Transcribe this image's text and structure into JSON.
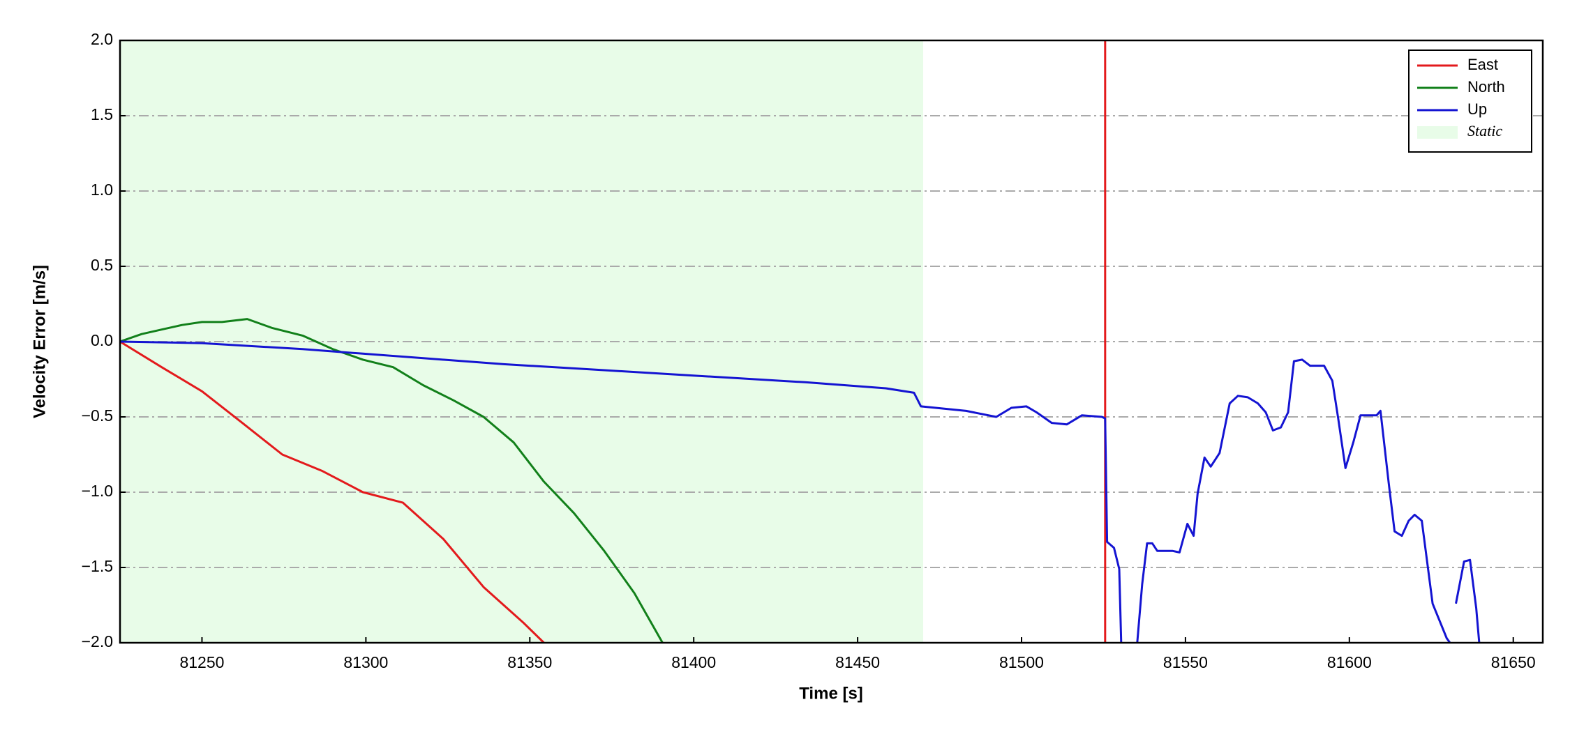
{
  "chart_data": {
    "type": "line",
    "xlabel": "Time [s]",
    "ylabel": "Velocity Error [m/s]",
    "xlim": [
      81225,
      81659
    ],
    "ylim": [
      -2,
      2
    ],
    "xticks": [
      81250,
      81300,
      81350,
      81400,
      81450,
      81500,
      81550,
      81600,
      81650
    ],
    "yticks": [
      {
        "value": -2,
        "label": "−2.0"
      },
      {
        "value": -1.5,
        "label": "−1.5"
      },
      {
        "value": -1,
        "label": "−1.0"
      },
      {
        "value": -0.5,
        "label": "−0.5"
      },
      {
        "value": 0,
        "label": "0.0"
      },
      {
        "value": 0.5,
        "label": "0.5"
      },
      {
        "value": 1,
        "label": "1.0"
      },
      {
        "value": 1.5,
        "label": "1.5"
      },
      {
        "value": 2,
        "label": "2.0"
      }
    ],
    "grid": true,
    "legend": "upper right",
    "shade": {
      "label": "Static",
      "x": [
        81225,
        81470
      ],
      "color": "#e8fce8"
    },
    "series": [
      {
        "name": "East",
        "color": "#e31a1c",
        "x": [
          81225,
          81237.7,
          81250,
          81262.3,
          81274.5,
          81286.8,
          81299.1,
          81311.3,
          81323.6,
          81335.9,
          81348.2,
          81354.3,
          81440,
          81525.5,
          81525.5
        ],
        "values": [
          0.0,
          -0.17,
          -0.33,
          -0.54,
          -0.75,
          -0.86,
          -1.0,
          -1.07,
          -1.31,
          -1.63,
          -1.87,
          -2.0,
          null,
          -2.0,
          2.0
        ]
      },
      {
        "name": "North",
        "color": "#12801a",
        "x": [
          81225,
          81231.6,
          81237.7,
          81243.9,
          81250,
          81256.1,
          81263.8,
          81271.5,
          81280.7,
          81289.9,
          81299.1,
          81308.3,
          81317.5,
          81326.7,
          81335.9,
          81345.1,
          81354.3,
          81363.5,
          81372.7,
          81381.9,
          81390.5
        ],
        "values": [
          0.0,
          0.05,
          0.08,
          0.11,
          0.13,
          0.13,
          0.15,
          0.09,
          0.04,
          -0.05,
          -0.12,
          -0.17,
          -0.29,
          -0.39,
          -0.5,
          -0.67,
          -0.93,
          -1.14,
          -1.39,
          -1.67,
          -2.0
        ]
      },
      {
        "name": "Up",
        "color": "#1414d2",
        "x": [
          81225,
          81250,
          81280.7,
          81299.1,
          81317.5,
          81342.0,
          81372.7,
          81403.4,
          81434.0,
          81458.6,
          81467.2,
          81469.3,
          81483.1,
          81492.3,
          81496.9,
          81501.5,
          81504.6,
          81509.2,
          81513.8,
          81518.4,
          81524.5,
          81525.5,
          81526.1,
          81528.2,
          81529.8,
          81530.4,
          81533,
          81535.3,
          81536.8,
          81538.3,
          81539.9,
          81541.4,
          81546.0,
          81548.2,
          81550.6,
          81552.5,
          81553.7,
          81555.8,
          81557.7,
          81560.4,
          81563.5,
          81566.0,
          81569.0,
          81572.1,
          81574.5,
          81576.7,
          81579.1,
          81581.3,
          81583.1,
          81585.6,
          81588.0,
          81590.5,
          81592.3,
          81594.8,
          81596.6,
          81598.8,
          81601.2,
          81603.4,
          81608.3,
          81609.5,
          81612.0,
          81613.8,
          81616.0,
          81618.1,
          81619.9,
          81622.1,
          81625.4,
          81629.7,
          81630.7,
          81632,
          81632.5,
          81635.0,
          81636.8,
          81638.7,
          81639.6
        ],
        "values": [
          0.0,
          -0.01,
          -0.05,
          -0.08,
          -0.11,
          -0.15,
          -0.19,
          -0.23,
          -0.27,
          -0.31,
          -0.34,
          -0.43,
          -0.46,
          -0.5,
          -0.44,
          -0.43,
          -0.47,
          -0.54,
          -0.55,
          -0.49,
          -0.5,
          -0.51,
          -1.33,
          -1.37,
          -1.51,
          -2.0,
          null,
          -2.0,
          -1.61,
          -1.34,
          -1.34,
          -1.39,
          -1.39,
          -1.4,
          -1.21,
          -1.29,
          -1.01,
          -0.77,
          -0.83,
          -0.74,
          -0.41,
          -0.36,
          -0.37,
          -0.41,
          -0.47,
          -0.59,
          -0.57,
          -0.47,
          -0.13,
          -0.12,
          -0.16,
          -0.16,
          -0.16,
          -0.26,
          -0.51,
          -0.84,
          -0.67,
          -0.49,
          -0.49,
          -0.46,
          -0.94,
          -1.26,
          -1.29,
          -1.19,
          -1.15,
          -1.19,
          -1.74,
          -1.97,
          -2.0,
          null,
          -1.74,
          -1.46,
          -1.45,
          -1.77,
          -2.0
        ]
      }
    ]
  }
}
